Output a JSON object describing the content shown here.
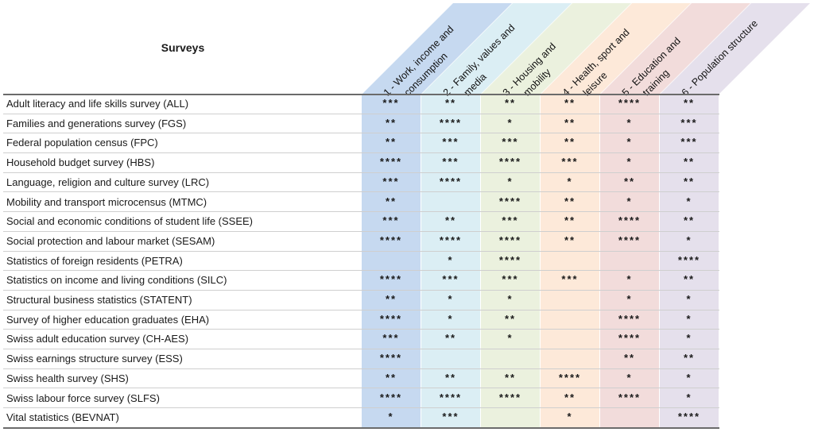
{
  "header": {
    "surveys_title": "Surveys"
  },
  "columns": [
    {
      "id": 1,
      "label_lines": [
        "1 - Work, income and",
        "consumption"
      ],
      "color": "#c6d9f0"
    },
    {
      "id": 2,
      "label_lines": [
        "2 - Family, values and",
        "media"
      ],
      "color": "#dbeef4"
    },
    {
      "id": 3,
      "label_lines": [
        "3 - Housing and",
        "mobility"
      ],
      "color": "#ebf1de"
    },
    {
      "id": 4,
      "label_lines": [
        "4 - Health, sport and",
        "leisure"
      ],
      "color": "#fde9d9"
    },
    {
      "id": 5,
      "label_lines": [
        "5 - Education and",
        "training"
      ],
      "color": "#f2dcdb"
    },
    {
      "id": 6,
      "label_lines": [
        "6 - Population structure"
      ],
      "color": "#e5e0ec"
    }
  ],
  "rows": [
    {
      "name": "Adult literacy and life skills survey (ALL)",
      "values": [
        "***",
        "**",
        "**",
        "**",
        "****",
        "**"
      ]
    },
    {
      "name": "Families and generations survey (FGS)",
      "values": [
        "**",
        "****",
        "*",
        "**",
        "*",
        "***"
      ]
    },
    {
      "name": "Federal population census (FPC)",
      "values": [
        "**",
        "***",
        "***",
        "**",
        "*",
        "***"
      ]
    },
    {
      "name": "Household budget survey (HBS)",
      "values": [
        "****",
        "***",
        "****",
        "***",
        "*",
        "**"
      ]
    },
    {
      "name": "Language, religion and culture survey (LRC)",
      "values": [
        "***",
        "****",
        "*",
        "*",
        "**",
        "**"
      ]
    },
    {
      "name": "Mobility and transport microcensus (MTMC)",
      "values": [
        "**",
        "",
        "****",
        "**",
        "*",
        "*"
      ]
    },
    {
      "name": "Social and economic conditions of student life (SSEE)",
      "values": [
        "***",
        "**",
        "***",
        "**",
        "****",
        "**"
      ]
    },
    {
      "name": "Social protection and labour market (SESAM)",
      "values": [
        "****",
        "****",
        "****",
        "**",
        "****",
        "*"
      ]
    },
    {
      "name": "Statistics of foreign residents (PETRA)",
      "values": [
        "",
        "*",
        "****",
        "",
        "",
        "****"
      ]
    },
    {
      "name": "Statistics on income and living conditions (SILC)",
      "values": [
        "****",
        "***",
        "***",
        "***",
        "*",
        "**"
      ]
    },
    {
      "name": "Structural business statistics (STATENT)",
      "values": [
        "**",
        "*",
        "*",
        "",
        "*",
        "*"
      ]
    },
    {
      "name": "Survey of higher education graduates (EHA)",
      "values": [
        "****",
        "*",
        "**",
        "",
        "****",
        "*"
      ]
    },
    {
      "name": "Swiss adult education survey (CH-AES)",
      "values": [
        "***",
        "**",
        "*",
        "",
        "****",
        "*"
      ]
    },
    {
      "name": "Swiss earnings structure survey (ESS)",
      "values": [
        "****",
        "",
        "",
        "",
        "**",
        "**"
      ]
    },
    {
      "name": "Swiss health survey (SHS)",
      "values": [
        "**",
        "**",
        "**",
        "****",
        "*",
        "*"
      ]
    },
    {
      "name": "Swiss labour force survey (SLFS)",
      "values": [
        "****",
        "****",
        "****",
        "**",
        "****",
        "*"
      ]
    },
    {
      "name": "Vital statistics (BEVNAT)",
      "values": [
        "*",
        "***",
        "",
        "*",
        "",
        "****"
      ]
    }
  ]
}
